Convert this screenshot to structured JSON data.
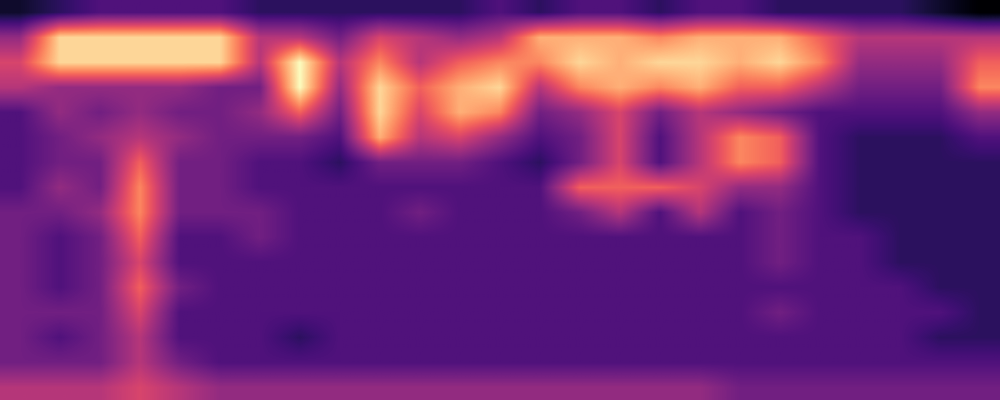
{
  "chart_data": {
    "type": "heatmap",
    "tick_labels": false,
    "values": [
      [
        0.35,
        0.4,
        0.45,
        0.45,
        0.45,
        0.45,
        0.4,
        0.4,
        0.4,
        0.4,
        0.4,
        0.4,
        0.45,
        0.4,
        0.45,
        0.45,
        0.4,
        0.45,
        0.45,
        0.4,
        0.4,
        0.4,
        0.4,
        0.35,
        0.3
      ],
      [
        0.55,
        0.85,
        0.85,
        0.85,
        0.85,
        0.85,
        0.6,
        0.6,
        0.5,
        0.65,
        0.6,
        0.55,
        0.6,
        0.8,
        0.8,
        0.8,
        0.75,
        0.8,
        0.8,
        0.8,
        0.7,
        0.6,
        0.6,
        0.6,
        0.6
      ],
      [
        0.65,
        0.85,
        0.85,
        0.85,
        0.85,
        0.85,
        0.6,
        0.9,
        0.6,
        0.75,
        0.6,
        0.7,
        0.75,
        0.75,
        0.85,
        0.8,
        0.85,
        0.85,
        0.8,
        0.85,
        0.75,
        0.55,
        0.55,
        0.55,
        0.7
      ],
      [
        0.6,
        0.55,
        0.55,
        0.55,
        0.55,
        0.5,
        0.5,
        0.9,
        0.55,
        0.85,
        0.7,
        0.8,
        0.85,
        0.6,
        0.75,
        0.8,
        0.75,
        0.8,
        0.7,
        0.7,
        0.6,
        0.5,
        0.5,
        0.5,
        0.75
      ],
      [
        0.45,
        0.55,
        0.5,
        0.55,
        0.5,
        0.5,
        0.55,
        0.7,
        0.5,
        0.85,
        0.65,
        0.8,
        0.75,
        0.5,
        0.55,
        0.65,
        0.5,
        0.6,
        0.55,
        0.5,
        0.45,
        0.45,
        0.45,
        0.45,
        0.55
      ],
      [
        0.45,
        0.5,
        0.55,
        0.6,
        0.55,
        0.5,
        0.5,
        0.5,
        0.45,
        0.8,
        0.6,
        0.65,
        0.55,
        0.45,
        0.5,
        0.65,
        0.45,
        0.6,
        0.75,
        0.7,
        0.45,
        0.4,
        0.4,
        0.4,
        0.45
      ],
      [
        0.45,
        0.5,
        0.5,
        0.7,
        0.5,
        0.5,
        0.45,
        0.45,
        0.4,
        0.5,
        0.5,
        0.5,
        0.45,
        0.4,
        0.5,
        0.65,
        0.45,
        0.6,
        0.75,
        0.7,
        0.45,
        0.4,
        0.4,
        0.4,
        0.4
      ],
      [
        0.45,
        0.55,
        0.5,
        0.75,
        0.5,
        0.5,
        0.45,
        0.45,
        0.45,
        0.45,
        0.45,
        0.45,
        0.45,
        0.45,
        0.7,
        0.7,
        0.7,
        0.65,
        0.55,
        0.55,
        0.45,
        0.4,
        0.4,
        0.4,
        0.4
      ],
      [
        0.5,
        0.5,
        0.55,
        0.75,
        0.5,
        0.5,
        0.5,
        0.45,
        0.45,
        0.45,
        0.5,
        0.45,
        0.45,
        0.45,
        0.5,
        0.6,
        0.45,
        0.6,
        0.45,
        0.5,
        0.45,
        0.4,
        0.4,
        0.4,
        0.4
      ],
      [
        0.5,
        0.45,
        0.5,
        0.7,
        0.45,
        0.45,
        0.5,
        0.45,
        0.45,
        0.45,
        0.45,
        0.45,
        0.45,
        0.45,
        0.45,
        0.45,
        0.45,
        0.45,
        0.45,
        0.5,
        0.45,
        0.45,
        0.4,
        0.4,
        0.4
      ],
      [
        0.5,
        0.45,
        0.5,
        0.65,
        0.45,
        0.45,
        0.45,
        0.45,
        0.45,
        0.45,
        0.45,
        0.45,
        0.45,
        0.45,
        0.45,
        0.45,
        0.45,
        0.45,
        0.45,
        0.5,
        0.45,
        0.45,
        0.4,
        0.4,
        0.4
      ],
      [
        0.5,
        0.45,
        0.5,
        0.7,
        0.5,
        0.45,
        0.45,
        0.45,
        0.45,
        0.45,
        0.45,
        0.45,
        0.45,
        0.45,
        0.45,
        0.45,
        0.45,
        0.45,
        0.45,
        0.45,
        0.45,
        0.45,
        0.45,
        0.4,
        0.4
      ],
      [
        0.5,
        0.5,
        0.5,
        0.65,
        0.45,
        0.45,
        0.45,
        0.45,
        0.45,
        0.45,
        0.45,
        0.45,
        0.45,
        0.45,
        0.45,
        0.45,
        0.45,
        0.45,
        0.45,
        0.5,
        0.45,
        0.45,
        0.45,
        0.45,
        0.4
      ],
      [
        0.5,
        0.45,
        0.5,
        0.6,
        0.45,
        0.45,
        0.45,
        0.4,
        0.45,
        0.45,
        0.45,
        0.45,
        0.45,
        0.45,
        0.45,
        0.45,
        0.45,
        0.45,
        0.45,
        0.45,
        0.45,
        0.45,
        0.45,
        0.4,
        0.4
      ],
      [
        0.5,
        0.5,
        0.5,
        0.6,
        0.5,
        0.45,
        0.45,
        0.45,
        0.45,
        0.45,
        0.45,
        0.45,
        0.45,
        0.45,
        0.45,
        0.45,
        0.45,
        0.45,
        0.45,
        0.45,
        0.45,
        0.45,
        0.45,
        0.45,
        0.45
      ],
      [
        0.6,
        0.6,
        0.6,
        0.65,
        0.6,
        0.55,
        0.55,
        0.55,
        0.55,
        0.55,
        0.55,
        0.55,
        0.55,
        0.55,
        0.55,
        0.55,
        0.55,
        0.55,
        0.5,
        0.5,
        0.5,
        0.5,
        0.5,
        0.5,
        0.5
      ]
    ]
  }
}
